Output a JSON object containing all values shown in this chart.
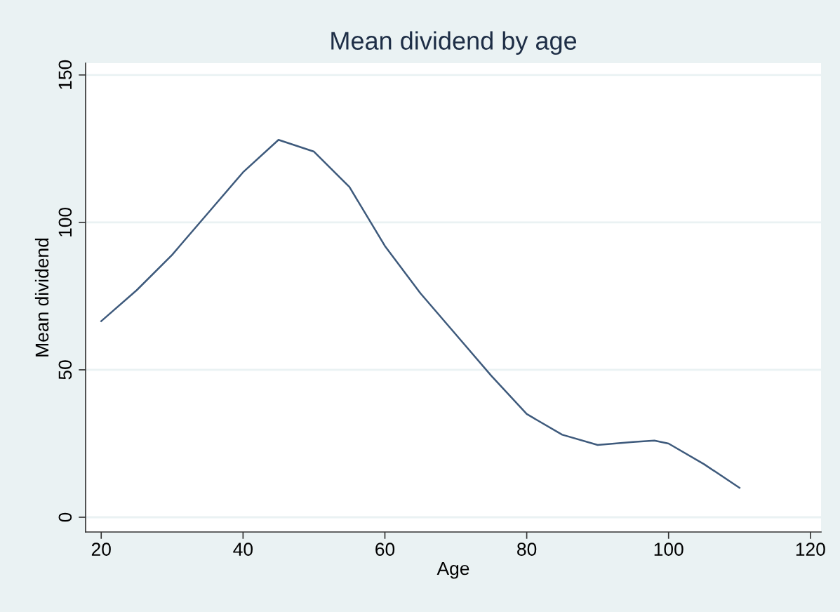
{
  "chart_data": {
    "type": "line",
    "title": "Mean dividend by age",
    "xlabel": "Age",
    "ylabel": "Mean dividend",
    "x": [
      20,
      25,
      30,
      35,
      40,
      45,
      50,
      55,
      60,
      65,
      70,
      75,
      80,
      85,
      90,
      95,
      98,
      100,
      105,
      110
    ],
    "series": [
      {
        "color": "#3e5a7c",
        "values": [
          66.5,
          77,
          89,
          103,
          117,
          128,
          124,
          112,
          92,
          76,
          62,
          48,
          35,
          28,
          24.5,
          25.5,
          26,
          25,
          18,
          10
        ]
      }
    ],
    "xlim": [
      17.8,
      121.5
    ],
    "ylim": [
      -5,
      154
    ],
    "xticks": [
      20,
      40,
      60,
      80,
      100,
      120
    ],
    "yticks": [
      0,
      50,
      100,
      150
    ],
    "grid": "y",
    "legend": false,
    "marker": "none",
    "line_style": "solid"
  }
}
